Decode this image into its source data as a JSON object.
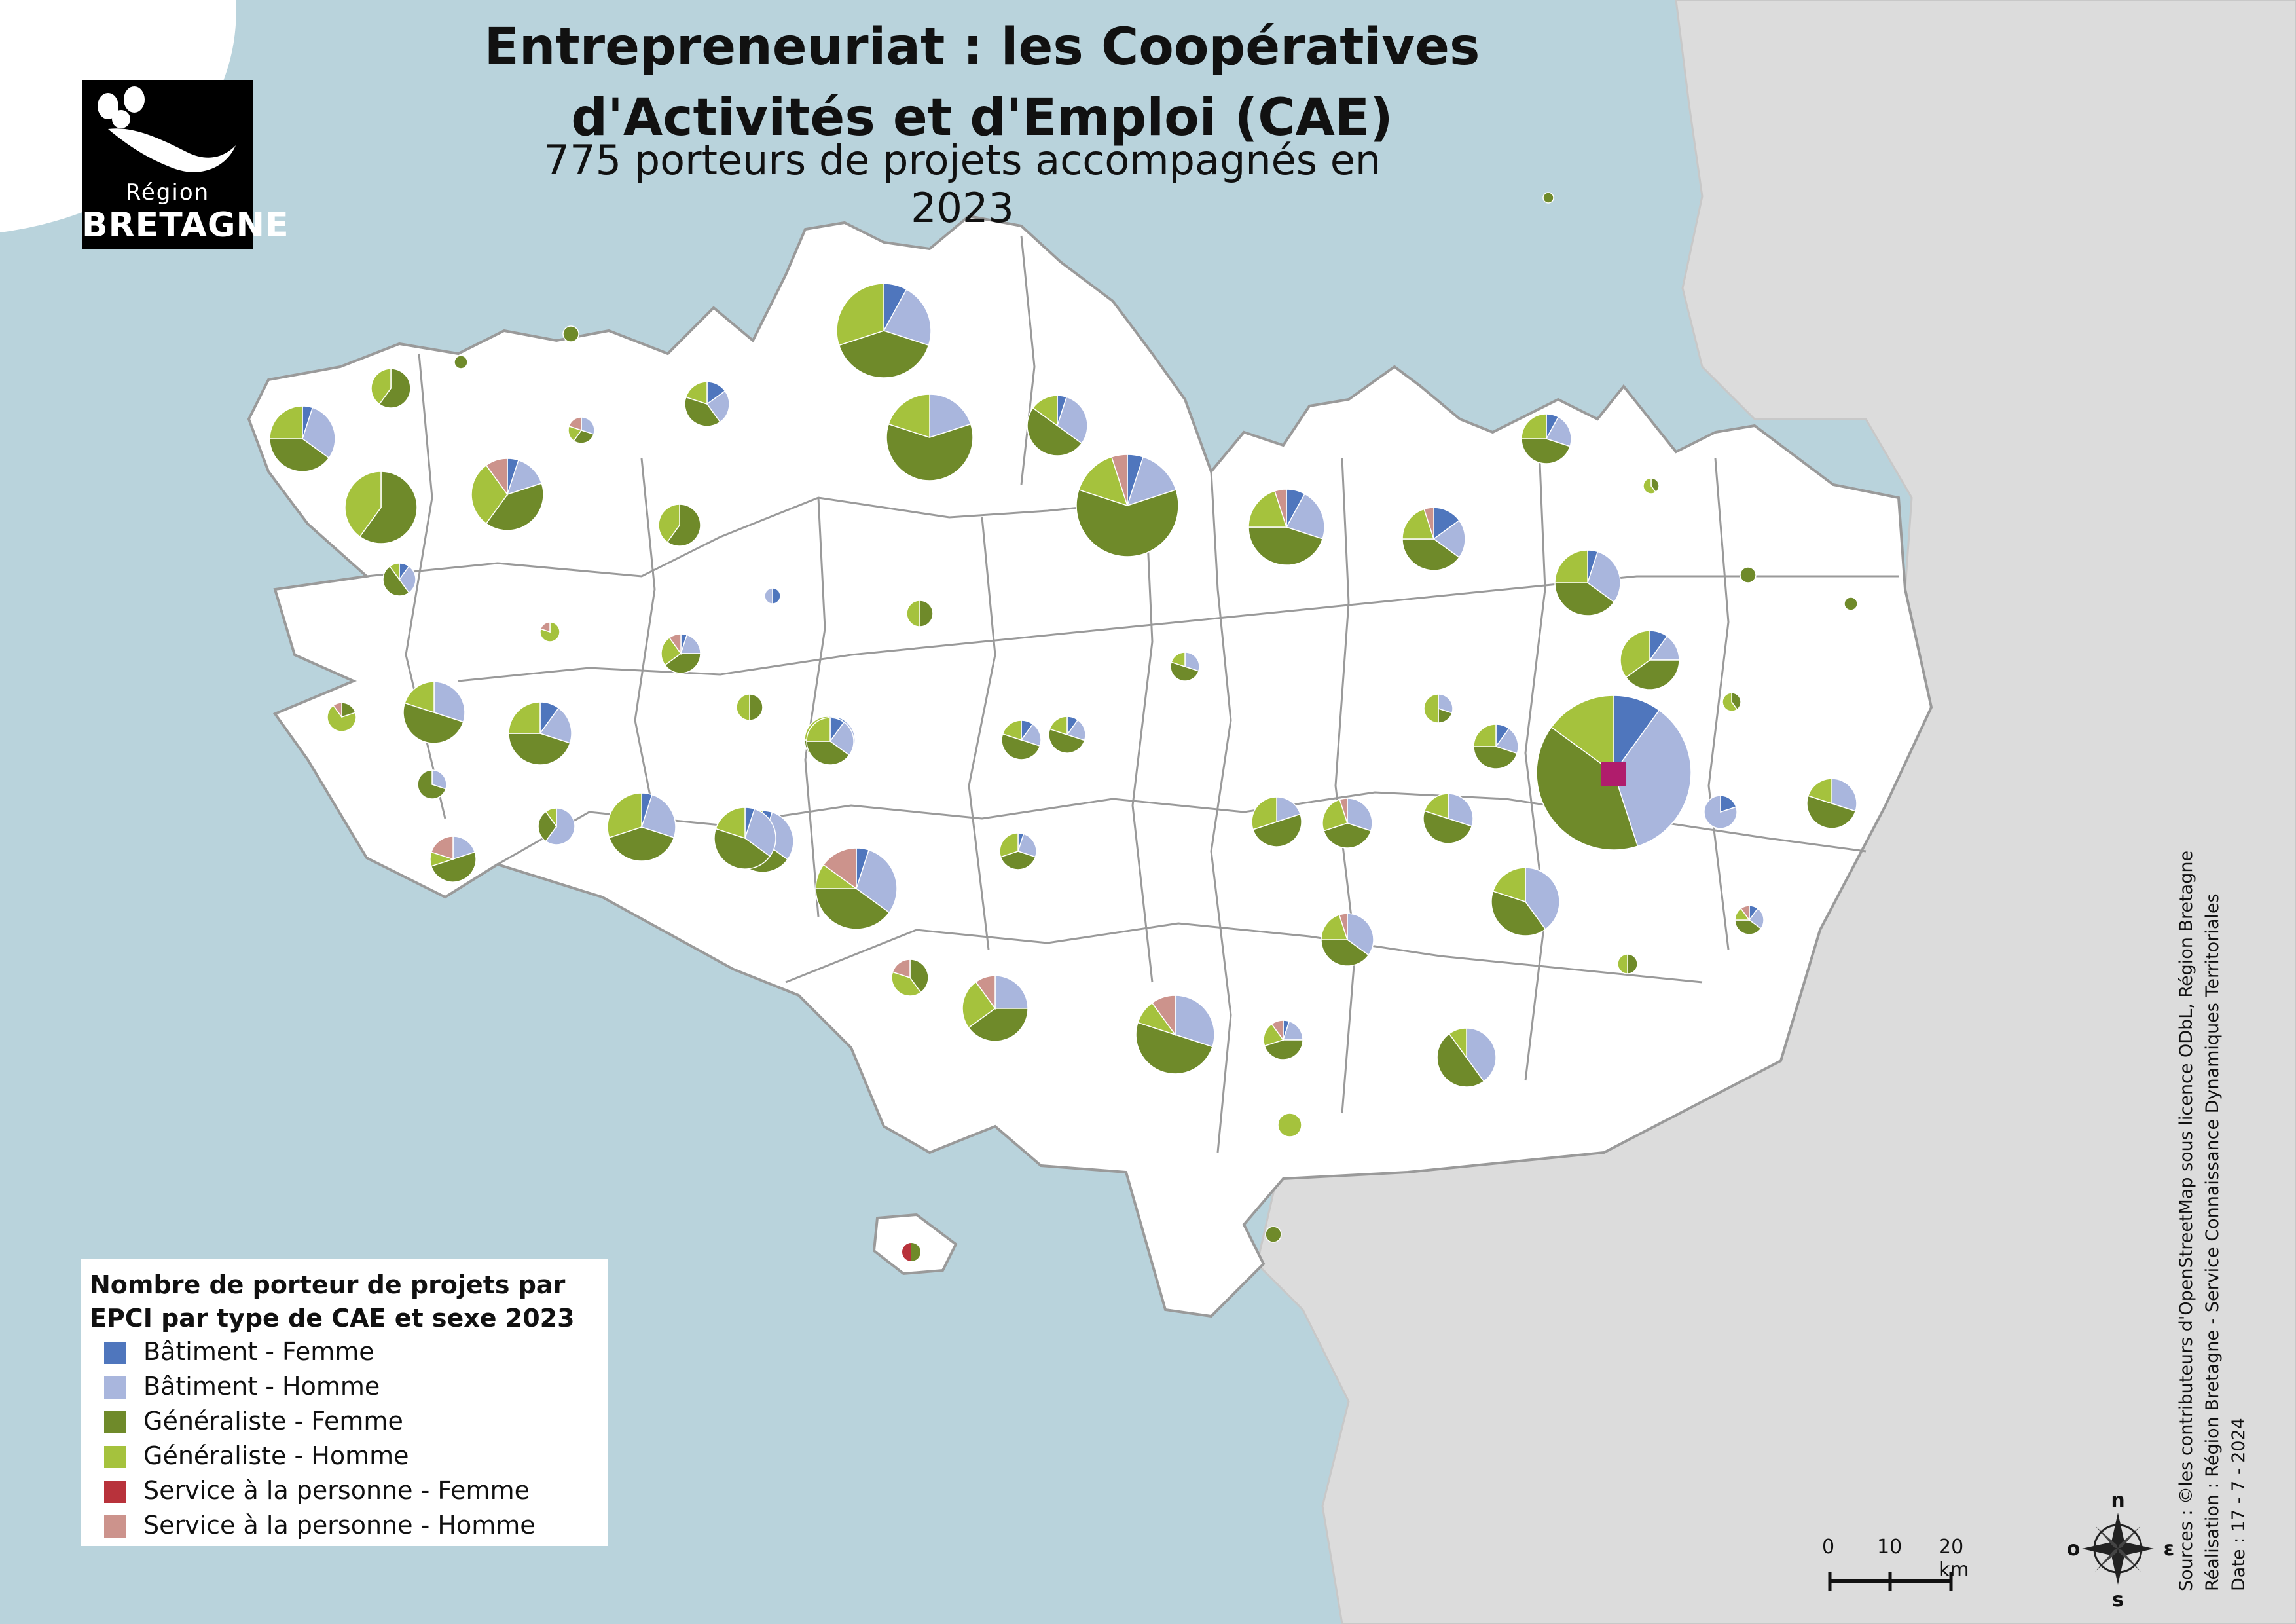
{
  "title": "Entrepreneuriat : les Coopératives d'Activités et d'Emploi (CAE)",
  "subtitle": "775 porteurs de projets accompagnés en 2023",
  "logo": {
    "small": "Région",
    "big": "BRETAGNE"
  },
  "legend": {
    "title": "Nombre de porteur de projets par EPCI par type de CAE et sexe 2023",
    "items": [
      {
        "label": "Bâtiment - Femme",
        "color": "#4f76bd"
      },
      {
        "label": "Bâtiment - Homme",
        "color": "#a9b6dd"
      },
      {
        "label": "Généraliste - Femme",
        "color": "#6f8a2a"
      },
      {
        "label": "Généraliste - Homme",
        "color": "#a5c23d"
      },
      {
        "label": "Service à la personne - Femme",
        "color": "#b8323b"
      },
      {
        "label": "Service à la personne - Homme",
        "color": "#cc938c"
      }
    ]
  },
  "scale_bar": {
    "labels": [
      "0",
      "10",
      "20 km"
    ]
  },
  "compass": {
    "n": "n",
    "e": "ε",
    "s": "s",
    "o": "o"
  },
  "sources": [
    "Sources : ©les contributeurs d'OpenStreetMap sous licence ODbL, Région Bretagne",
    "Réalisation : Région Bretagne - Service Connaissance Dynamiques Territoriales",
    "Date : 17 - 7 - 2024"
  ],
  "colors": {
    "sea": "#b9d3dc",
    "land_other": "#dcdcdc",
    "region": "#ffffff",
    "boundary": "#9a9a9a"
  }
}
